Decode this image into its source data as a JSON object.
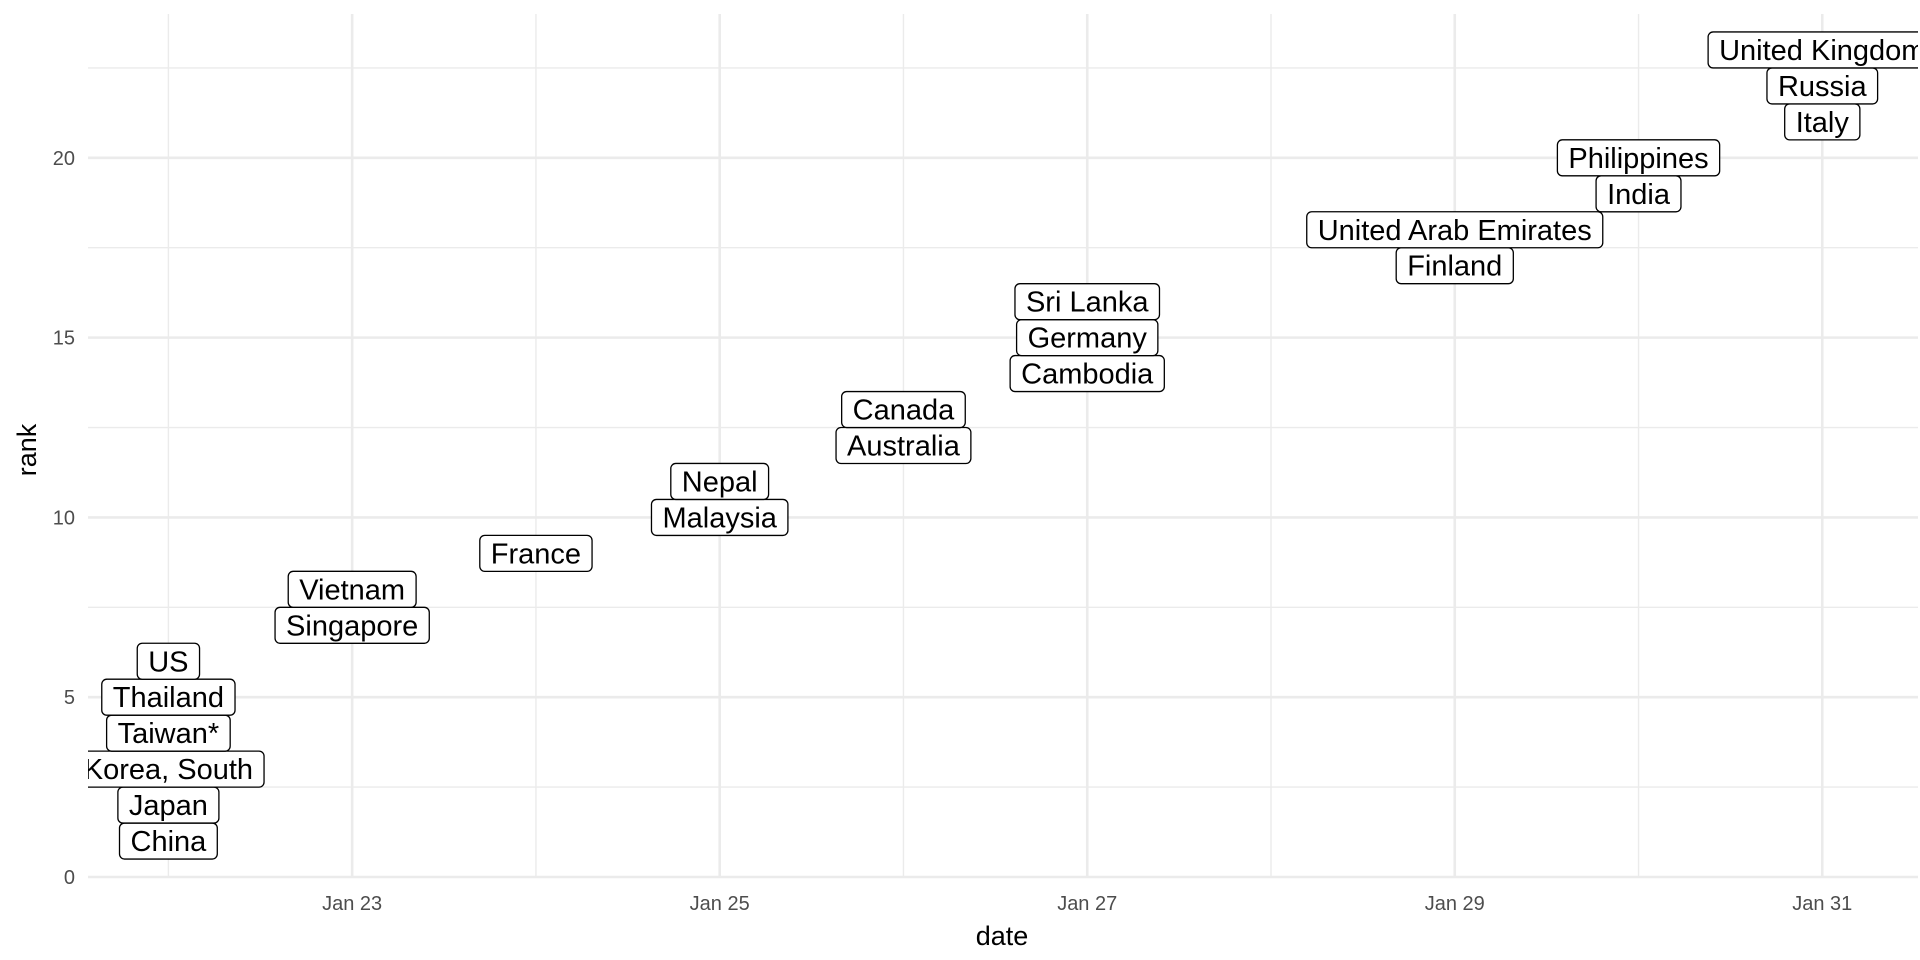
{
  "chart_data": {
    "type": "scatter",
    "title": "",
    "xlabel": "date",
    "ylabel": "rank",
    "xlim": [
      "2020-01-21T13:30",
      "2020-01-31T12:30"
    ],
    "ylim": [
      0,
      24
    ],
    "x_ticks": [
      {
        "date": "2020-01-23",
        "label": "Jan 23"
      },
      {
        "date": "2020-01-25",
        "label": "Jan 25"
      },
      {
        "date": "2020-01-27",
        "label": "Jan 27"
      },
      {
        "date": "2020-01-29",
        "label": "Jan 29"
      },
      {
        "date": "2020-01-31",
        "label": "Jan 31"
      }
    ],
    "y_ticks": [
      0,
      5,
      10,
      15,
      20
    ],
    "grid": true,
    "points": [
      {
        "label": "China",
        "date": "2020-01-22",
        "rank": 1
      },
      {
        "label": "Japan",
        "date": "2020-01-22",
        "rank": 2
      },
      {
        "label": "Korea, South",
        "date": "2020-01-22",
        "rank": 3
      },
      {
        "label": "Taiwan*",
        "date": "2020-01-22",
        "rank": 4
      },
      {
        "label": "Thailand",
        "date": "2020-01-22",
        "rank": 5
      },
      {
        "label": "US",
        "date": "2020-01-22",
        "rank": 6
      },
      {
        "label": "Singapore",
        "date": "2020-01-23",
        "rank": 7
      },
      {
        "label": "Vietnam",
        "date": "2020-01-23",
        "rank": 8
      },
      {
        "label": "France",
        "date": "2020-01-24",
        "rank": 9
      },
      {
        "label": "Malaysia",
        "date": "2020-01-25",
        "rank": 10
      },
      {
        "label": "Nepal",
        "date": "2020-01-25",
        "rank": 11
      },
      {
        "label": "Australia",
        "date": "2020-01-26",
        "rank": 12
      },
      {
        "label": "Canada",
        "date": "2020-01-26",
        "rank": 13
      },
      {
        "label": "Cambodia",
        "date": "2020-01-27",
        "rank": 14
      },
      {
        "label": "Germany",
        "date": "2020-01-27",
        "rank": 15
      },
      {
        "label": "Sri Lanka",
        "date": "2020-01-27",
        "rank": 16
      },
      {
        "label": "Finland",
        "date": "2020-01-29",
        "rank": 17
      },
      {
        "label": "United Arab Emirates",
        "date": "2020-01-29",
        "rank": 18
      },
      {
        "label": "India",
        "date": "2020-01-30",
        "rank": 19
      },
      {
        "label": "Philippines",
        "date": "2020-01-30",
        "rank": 20
      },
      {
        "label": "Italy",
        "date": "2020-01-31",
        "rank": 21
      },
      {
        "label": "Russia",
        "date": "2020-01-31",
        "rank": 22
      },
      {
        "label": "United Kingdom",
        "date": "2020-01-31",
        "rank": 23
      }
    ]
  }
}
